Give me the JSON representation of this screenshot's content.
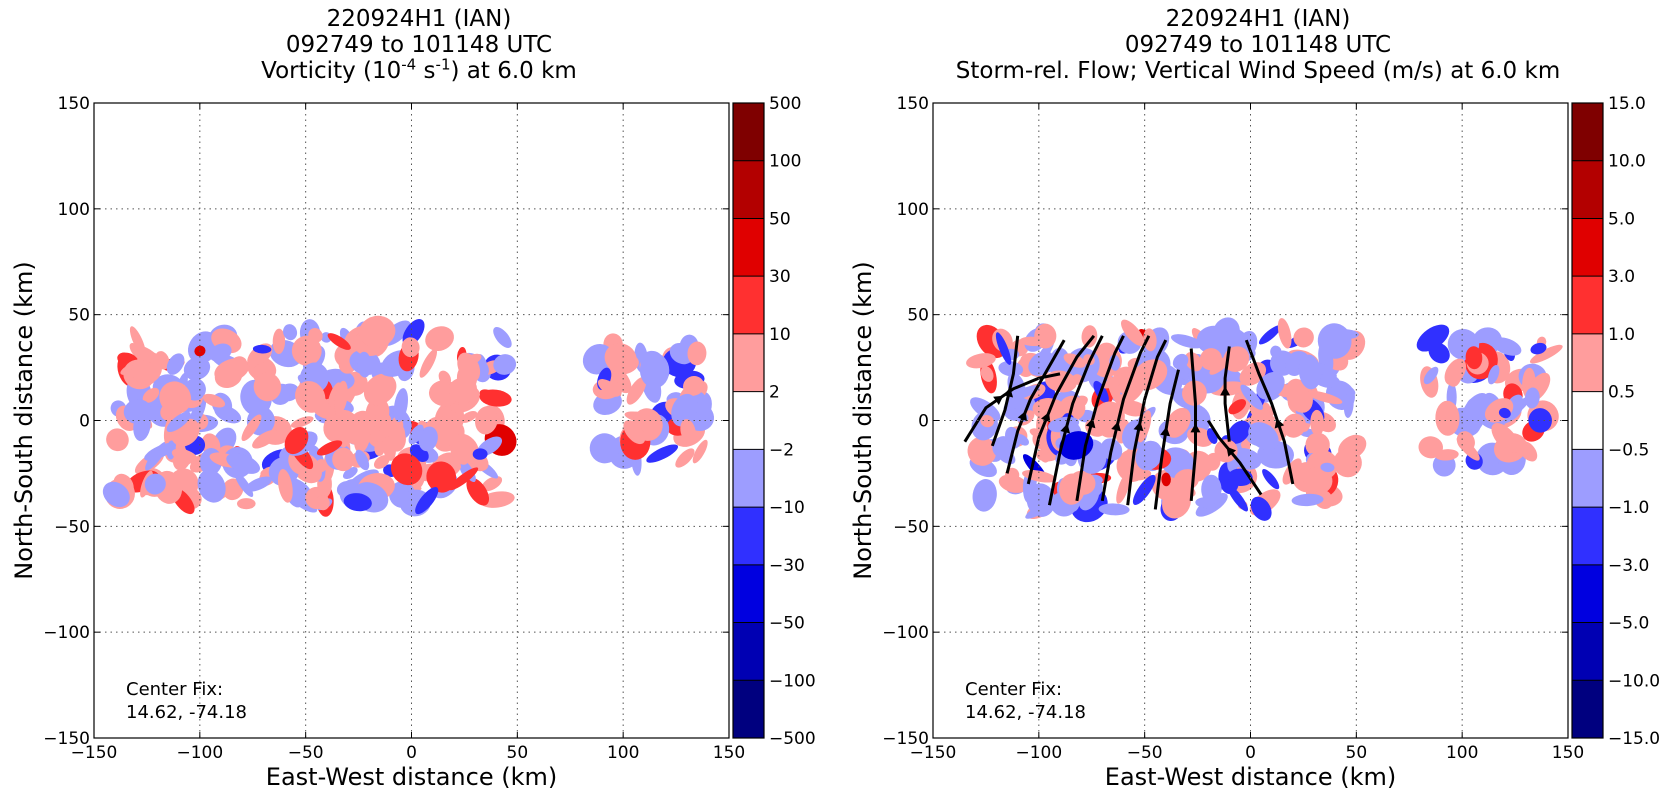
{
  "chart_data": [
    {
      "type": "heatmap",
      "title_line1": "220924H1 (IAN)",
      "title_line2": "092749 to 101148 UTC",
      "title_line3_pre": "Vorticity (10",
      "title_line3_sup1": "-4",
      "title_line3_mid": " s",
      "title_line3_sup2": "-1",
      "title_line3_post": ") at 6.0 km",
      "xlabel": "East-West distance (km)",
      "ylabel": "North-South distance (km)",
      "xlim": [
        -150,
        150
      ],
      "ylim": [
        -150,
        150
      ],
      "xticks": [
        "−150",
        "−100",
        "−50",
        "0",
        "50",
        "100",
        "150"
      ],
      "yticks": [
        "150",
        "100",
        "50",
        "0",
        "−50",
        "−100",
        "−150"
      ],
      "grid": true,
      "center_fix_label": "Center Fix:",
      "center_fix_coords": "14.62, -74.18",
      "colorbar": {
        "levels": [
          "500",
          "100",
          "50",
          "30",
          "10",
          "2",
          "−2",
          "−10",
          "−30",
          "−50",
          "−100",
          "−500"
        ],
        "colors": [
          "#7f0000",
          "#b30000",
          "#e00000",
          "#ff3030",
          "#ff9d9d",
          "#ffffff",
          "#9d9dff",
          "#3030ff",
          "#0000e0",
          "#0000b3",
          "#00007f"
        ]
      },
      "data_region_km": [
        {
          "x": [
            -140,
            45
          ],
          "y": [
            -40,
            42
          ]
        },
        {
          "x": [
            87,
            137
          ],
          "y": [
            -21,
            37
          ]
        }
      ]
    },
    {
      "type": "heatmap",
      "title_line1": "220924H1 (IAN)",
      "title_line2": "092749 to 101148 UTC",
      "title_line3": "Storm-rel. Flow; Vertical Wind Speed (m/s) at 6.0 km",
      "xlabel": "East-West distance (km)",
      "ylabel": "North-South distance (km)",
      "xlim": [
        -150,
        150
      ],
      "ylim": [
        -150,
        150
      ],
      "xticks": [
        "−150",
        "−100",
        "−50",
        "0",
        "50",
        "100",
        "150"
      ],
      "yticks": [
        "150",
        "100",
        "50",
        "0",
        "−50",
        "−100",
        "−150"
      ],
      "grid": true,
      "center_fix_label": "Center Fix:",
      "center_fix_coords": "14.62, -74.18",
      "colorbar": {
        "levels": [
          "15.0",
          "10.0",
          "5.0",
          "3.0",
          "1.0",
          "0.5",
          "−0.5",
          "−1.0",
          "−3.0",
          "−5.0",
          "−10.0",
          "−15.0"
        ],
        "colors": [
          "#7f0000",
          "#b30000",
          "#e00000",
          "#ff3030",
          "#ff9d9d",
          "#ffffff",
          "#9d9dff",
          "#3030ff",
          "#0000e0",
          "#0000b3",
          "#00007f"
        ]
      },
      "data_region_km": [
        {
          "x": [
            -130,
            50
          ],
          "y": [
            -42,
            42
          ]
        },
        {
          "x": [
            84,
            140
          ],
          "y": [
            -22,
            40
          ]
        }
      ],
      "streamlines_km": [
        [
          [
            -122,
            -12
          ],
          [
            -116,
            5
          ],
          [
            -112,
            22
          ],
          [
            -110,
            40
          ]
        ],
        [
          [
            -135,
            -10
          ],
          [
            -125,
            6
          ],
          [
            -112,
            15
          ],
          [
            -100,
            20
          ],
          [
            -90,
            22
          ]
        ],
        [
          [
            -115,
            -25
          ],
          [
            -110,
            -5
          ],
          [
            -104,
            10
          ],
          [
            -96,
            24
          ],
          [
            -88,
            38
          ]
        ],
        [
          [
            -105,
            -30
          ],
          [
            -100,
            -8
          ],
          [
            -92,
            12
          ],
          [
            -82,
            30
          ],
          [
            -74,
            40
          ]
        ],
        [
          [
            -95,
            -40
          ],
          [
            -90,
            -15
          ],
          [
            -84,
            8
          ],
          [
            -76,
            28
          ],
          [
            -70,
            40
          ]
        ],
        [
          [
            -82,
            -38
          ],
          [
            -78,
            -12
          ],
          [
            -72,
            10
          ],
          [
            -64,
            32
          ],
          [
            -60,
            40
          ]
        ],
        [
          [
            -70,
            -38
          ],
          [
            -66,
            -15
          ],
          [
            -60,
            10
          ],
          [
            -52,
            32
          ],
          [
            -48,
            40
          ]
        ],
        [
          [
            -58,
            -40
          ],
          [
            -55,
            -15
          ],
          [
            -50,
            10
          ],
          [
            -44,
            30
          ],
          [
            -40,
            38
          ]
        ],
        [
          [
            -45,
            -42
          ],
          [
            -42,
            -18
          ],
          [
            -38,
            8
          ],
          [
            -34,
            24
          ]
        ],
        [
          [
            -28,
            -38
          ],
          [
            -26,
            -15
          ],
          [
            -26,
            8
          ],
          [
            -28,
            34
          ]
        ],
        [
          [
            -10,
            -10
          ],
          [
            -12,
            8
          ],
          [
            -12,
            20
          ],
          [
            -10,
            35
          ]
        ],
        [
          [
            20,
            -30
          ],
          [
            16,
            -10
          ],
          [
            10,
            8
          ],
          [
            4,
            22
          ],
          [
            -2,
            38
          ]
        ],
        [
          [
            5,
            -35
          ],
          [
            -5,
            -20
          ],
          [
            -15,
            -8
          ],
          [
            -20,
            0
          ]
        ]
      ]
    }
  ]
}
